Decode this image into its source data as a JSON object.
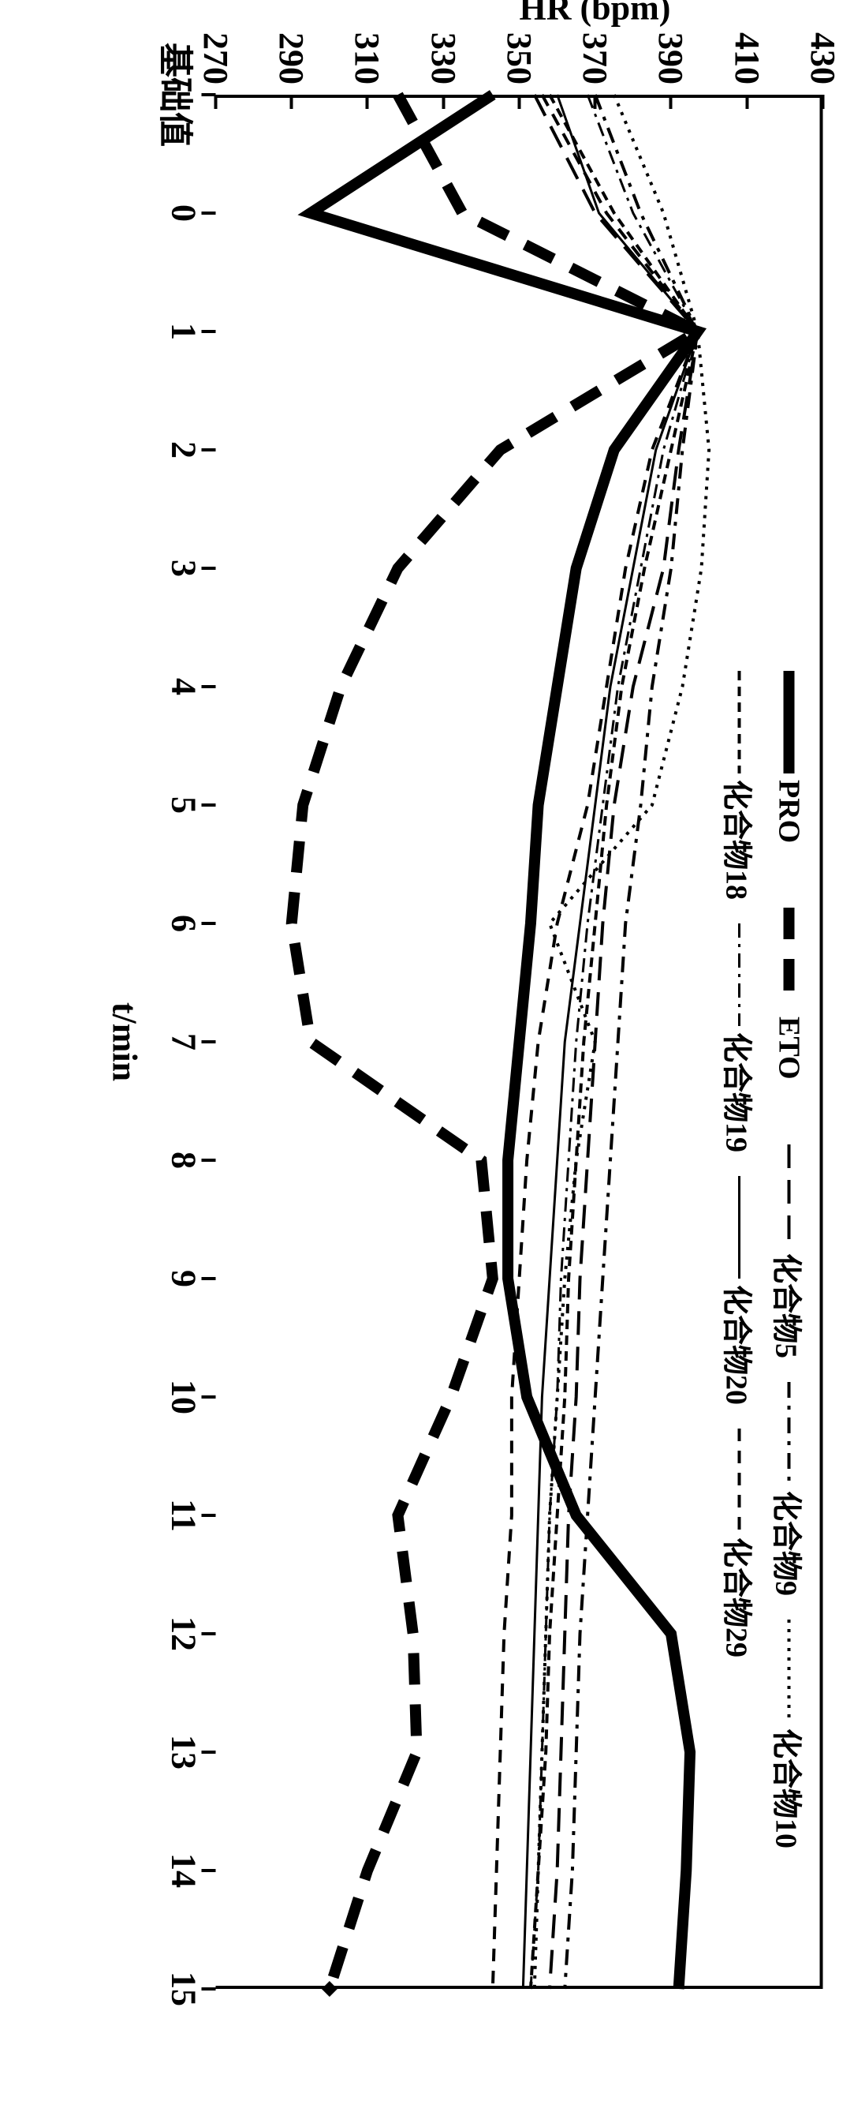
{
  "chart": {
    "type": "line",
    "background_color": "#ffffff",
    "line_color": "#000000",
    "xlabel": "t/min",
    "ylabel": "HR (bpm)",
    "label_fontsize": 44,
    "tick_fontsize": 44,
    "xlim": [
      -1,
      15
    ],
    "ylim": [
      270,
      430
    ],
    "ytick_step": 20,
    "yticks": [
      270,
      290,
      310,
      330,
      350,
      370,
      390,
      410,
      430
    ],
    "xticks_labels": [
      "基础值",
      "0",
      "1",
      "2",
      "3",
      "4",
      "5",
      "6",
      "7",
      "8",
      "9",
      "10",
      "11",
      "12",
      "13",
      "14",
      "15"
    ],
    "xticks_positions": [
      -1,
      0,
      1,
      2,
      3,
      4,
      5,
      6,
      7,
      8,
      9,
      10,
      11,
      12,
      13,
      14,
      15
    ],
    "series": [
      {
        "name": "PRO",
        "label": "PRO",
        "dash": "solid",
        "width": 14,
        "x": [
          -1,
          0,
          1,
          2,
          3,
          4,
          5,
          6,
          7,
          8,
          9,
          10,
          11,
          12,
          13,
          14,
          15
        ],
        "y": [
          343,
          295,
          397,
          375,
          365,
          360,
          355,
          353,
          350,
          347,
          347,
          352,
          365,
          390,
          395,
          394,
          392
        ]
      },
      {
        "name": "ETO",
        "label": "ETO",
        "dash": "dash-long-thick",
        "width": 14,
        "x": [
          -1,
          0,
          1,
          2,
          3,
          4,
          5,
          6,
          7,
          8,
          9,
          10,
          11,
          12,
          13,
          14,
          15
        ],
        "y": [
          318,
          335,
          397,
          345,
          318,
          303,
          293,
          290,
          295,
          340,
          343,
          332,
          318,
          322,
          323,
          310,
          300
        ]
      },
      {
        "name": "化合物5",
        "label": "化合物5",
        "dash": "dash-long",
        "width": 4,
        "x": [
          -1,
          0,
          1,
          2,
          3,
          4,
          5,
          6,
          7,
          8,
          9,
          10,
          11,
          12,
          13,
          14,
          15
        ],
        "y": [
          354,
          370,
          397,
          392,
          388,
          380,
          375,
          372,
          370,
          368,
          366,
          365,
          363,
          362,
          361,
          360,
          358
        ]
      },
      {
        "name": "化合物9",
        "label": "化合物9",
        "dash": "dash-dot",
        "width": 4,
        "x": [
          -1,
          0,
          1,
          2,
          3,
          4,
          5,
          6,
          7,
          8,
          9,
          10,
          11,
          12,
          13,
          14,
          15
        ],
        "y": [
          370,
          382,
          397,
          393,
          390,
          385,
          382,
          378,
          376,
          374,
          372,
          370,
          368,
          366,
          365,
          364,
          362
        ]
      },
      {
        "name": "化合物10",
        "label": "化合物10",
        "dash": "dot",
        "width": 4,
        "x": [
          -1,
          0,
          1,
          2,
          3,
          4,
          5,
          6,
          7,
          8,
          9,
          10,
          11,
          12,
          13,
          14,
          15
        ],
        "y": [
          375,
          388,
          397,
          400,
          398,
          393,
          385,
          358,
          370,
          365,
          362,
          360,
          358,
          357,
          356,
          355,
          354
        ]
      },
      {
        "name": "化合物18",
        "label": "化合物18",
        "dash": "dash-short",
        "width": 4,
        "x": [
          -1,
          0,
          1,
          2,
          3,
          4,
          5,
          6,
          7,
          8,
          9,
          10,
          11,
          12,
          13,
          14,
          15
        ],
        "y": [
          358,
          375,
          397,
          390,
          383,
          377,
          373,
          370,
          367,
          365,
          363,
          362,
          360,
          358,
          357,
          355,
          353
        ]
      },
      {
        "name": "化合物19",
        "label": "化合物19",
        "dash": "dash-dot-thin",
        "width": 3,
        "x": [
          -1,
          0,
          1,
          2,
          3,
          4,
          5,
          6,
          7,
          8,
          9,
          10,
          11,
          12,
          13,
          14,
          15
        ],
        "y": [
          368,
          380,
          397,
          388,
          382,
          376,
          372,
          368,
          365,
          363,
          361,
          360,
          358,
          357,
          356,
          355,
          353
        ]
      },
      {
        "name": "化合物20",
        "label": "化合物20",
        "dash": "solid-thin",
        "width": 3,
        "x": [
          -1,
          0,
          1,
          2,
          3,
          4,
          5,
          6,
          7,
          8,
          9,
          10,
          11,
          12,
          13,
          14,
          15
        ],
        "y": [
          360,
          371,
          397,
          386,
          380,
          374,
          370,
          366,
          362,
          360,
          358,
          356,
          355,
          354,
          353,
          352,
          351
        ]
      },
      {
        "name": "化合物29",
        "label": "化合物29",
        "dash": "dash-medium",
        "width": 4,
        "x": [
          -1,
          0,
          1,
          2,
          3,
          4,
          5,
          6,
          7,
          8,
          9,
          10,
          11,
          12,
          13,
          14,
          15
        ],
        "y": [
          356,
          373,
          397,
          385,
          378,
          373,
          368,
          360,
          355,
          352,
          350,
          348,
          348,
          346,
          345,
          344,
          343
        ]
      }
    ],
    "legend": {
      "position": "top-center",
      "rows": [
        [
          "PRO",
          "ETO",
          "化合物5",
          "化合物9",
          "化合物10"
        ],
        [
          "化合物18",
          "化合物19",
          "化合物20",
          "化合物29"
        ]
      ]
    },
    "dash_patterns": {
      "solid": "",
      "dash-long-thick": "40 25",
      "dash-long": "30 15",
      "dash-dot": "20 10 5 10",
      "dot": "4 8",
      "dash-short": "12 8",
      "dash-dot-thin": "18 8 4 8",
      "solid-thin": "",
      "dash-medium": "16 12"
    }
  }
}
